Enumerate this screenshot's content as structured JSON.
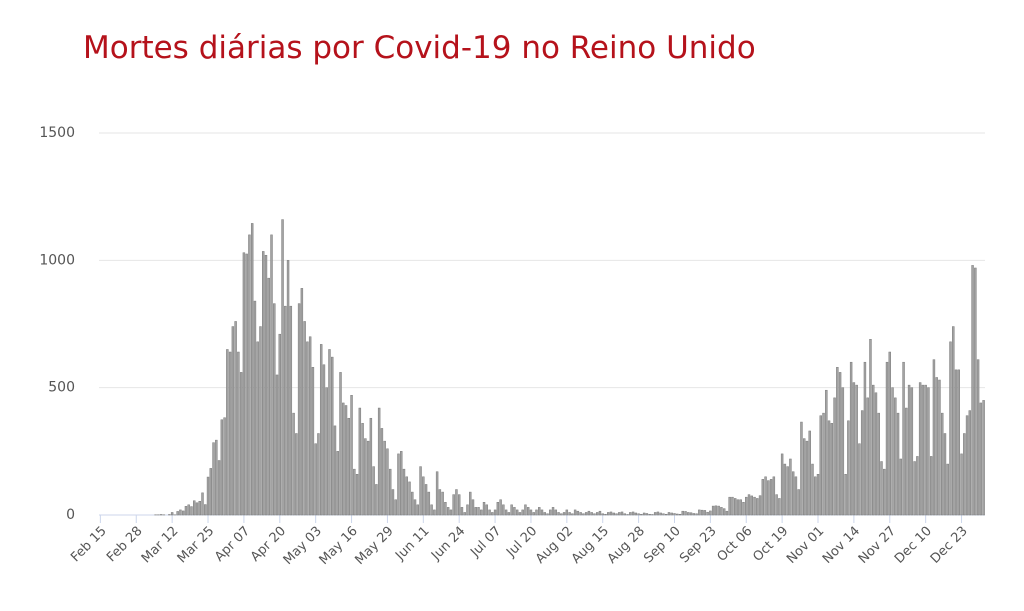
{
  "chart_data": {
    "type": "bar",
    "title": "Mortes diárias por Covid-19 no Reino Unido",
    "color": "#a3a3a3",
    "categories": [
      "Feb 15",
      null,
      null,
      null,
      null,
      null,
      null,
      null,
      null,
      null,
      null,
      null,
      null,
      "Feb 28",
      null,
      null,
      null,
      null,
      null,
      null,
      null,
      null,
      null,
      null,
      null,
      null,
      "Mar 12",
      null,
      null,
      null,
      null,
      null,
      null,
      null,
      null,
      null,
      null,
      null,
      null,
      "Mar 25",
      null,
      null,
      null,
      null,
      null,
      null,
      null,
      null,
      null,
      null,
      null,
      null,
      "Apr 07",
      null,
      null,
      null,
      null,
      null,
      null,
      null,
      null,
      null,
      null,
      null,
      null,
      "Apr 20",
      null,
      null,
      null,
      null,
      null,
      null,
      null,
      null,
      null,
      null,
      null,
      null,
      "May 03",
      null,
      null,
      null,
      null,
      null,
      null,
      null,
      null,
      null,
      null,
      null,
      null,
      "May 16",
      null,
      null,
      null,
      null,
      null,
      null,
      null,
      null,
      null,
      null,
      null,
      null,
      "May 29",
      null,
      null,
      null,
      null,
      null,
      null,
      null,
      null,
      null,
      null,
      null,
      null,
      "Jun 11",
      null,
      null,
      null,
      null,
      null,
      null,
      null,
      null,
      null,
      null,
      null,
      null,
      "Jun 24",
      null,
      null,
      null,
      null,
      null,
      null,
      null,
      null,
      null,
      null,
      null,
      null,
      "Jul 07",
      null,
      null,
      null,
      null,
      null,
      null,
      null,
      null,
      null,
      null,
      null,
      null,
      "Jul 20",
      null,
      null,
      null,
      null,
      null,
      null,
      null,
      null,
      null,
      null,
      null,
      null,
      "Aug 02",
      null,
      null,
      null,
      null,
      null,
      null,
      null,
      null,
      null,
      null,
      null,
      null,
      "Aug 15",
      null,
      null,
      null,
      null,
      null,
      null,
      null,
      null,
      null,
      null,
      null,
      null,
      "Aug 28",
      null,
      null,
      null,
      null,
      null,
      null,
      null,
      null,
      null,
      null,
      null,
      null,
      "Sep 10",
      null,
      null,
      null,
      null,
      null,
      null,
      null,
      null,
      null,
      null,
      null,
      null,
      "Sep 23",
      null,
      null,
      null,
      null,
      null,
      null,
      null,
      null,
      null,
      null,
      null,
      null,
      "Oct 06",
      null,
      null,
      null,
      null,
      null,
      null,
      null,
      null,
      null,
      null,
      null,
      null,
      "Oct 19",
      null,
      null,
      null,
      null,
      null,
      null,
      null,
      null,
      null,
      null,
      null,
      null,
      "Nov 01",
      null,
      null,
      null,
      null,
      null,
      null,
      null,
      null,
      null,
      null,
      null,
      null,
      "Nov 14",
      null,
      null,
      null,
      null,
      null,
      null,
      null,
      null,
      null,
      null,
      null,
      null,
      "Nov 27",
      null,
      null,
      null,
      null,
      null,
      null,
      null,
      null,
      null,
      null,
      null,
      null,
      "Dec 10",
      null,
      null,
      null,
      null,
      null,
      null,
      null,
      null,
      null,
      null,
      null,
      null,
      "Dec 23",
      null,
      null,
      null,
      null,
      null,
      null,
      null,
      null
    ],
    "values": [
      0,
      0,
      0,
      0,
      0,
      0,
      0,
      0,
      0,
      0,
      0,
      0,
      0,
      0,
      0,
      0,
      0,
      0,
      0,
      0,
      1,
      1,
      2,
      1,
      0,
      2,
      10,
      1,
      14,
      20,
      16,
      34,
      40,
      33,
      56,
      48,
      54,
      87,
      41,
      149,
      183,
      284,
      294,
      214,
      374,
      382,
      650,
      640,
      740,
      760,
      640,
      560,
      1030,
      1025,
      1100,
      1145,
      840,
      680,
      740,
      1035,
      1020,
      930,
      1100,
      830,
      550,
      710,
      1160,
      820,
      1000,
      820,
      400,
      320,
      830,
      890,
      760,
      680,
      700,
      580,
      280,
      320,
      670,
      590,
      500,
      650,
      620,
      350,
      250,
      560,
      440,
      430,
      380,
      470,
      180,
      160,
      420,
      360,
      300,
      290,
      380,
      190,
      120,
      420,
      340,
      290,
      260,
      180,
      100,
      60,
      240,
      250,
      180,
      150,
      130,
      90,
      60,
      40,
      190,
      150,
      120,
      90,
      40,
      20,
      170,
      100,
      90,
      50,
      30,
      20,
      80,
      100,
      80,
      30,
      10,
      40,
      90,
      60,
      30,
      30,
      20,
      50,
      40,
      20,
      10,
      20,
      50,
      60,
      40,
      20,
      10,
      40,
      30,
      20,
      10,
      20,
      40,
      30,
      20,
      10,
      20,
      30,
      20,
      10,
      5,
      20,
      30,
      20,
      10,
      5,
      10,
      20,
      10,
      5,
      20,
      15,
      10,
      5,
      10,
      15,
      10,
      5,
      10,
      15,
      5,
      3,
      10,
      12,
      8,
      5,
      10,
      12,
      5,
      2,
      10,
      12,
      8,
      5,
      3,
      8,
      6,
      3,
      2,
      10,
      12,
      8,
      5,
      3,
      10,
      8,
      6,
      4,
      3,
      15,
      14,
      10,
      9,
      6,
      5,
      20,
      19,
      18,
      11,
      16,
      35,
      36,
      35,
      30,
      25,
      15,
      70,
      70,
      65,
      60,
      60,
      50,
      70,
      80,
      75,
      70,
      65,
      76,
      140,
      150,
      135,
      140,
      150,
      80,
      65,
      240,
      200,
      190,
      220,
      170,
      150,
      100,
      365,
      300,
      290,
      330,
      200,
      150,
      160,
      390,
      400,
      490,
      370,
      360,
      460,
      580,
      560,
      500,
      160,
      370,
      600,
      520,
      510,
      280,
      410,
      600,
      460,
      690,
      510,
      480,
      400,
      210,
      180,
      600,
      640,
      500,
      460,
      400,
      220,
      600,
      420,
      510,
      500,
      210,
      230,
      520,
      510,
      510,
      500,
      230,
      610,
      540,
      530,
      400,
      320,
      200,
      680,
      740,
      570,
      570,
      240,
      320,
      390,
      410,
      980,
      970,
      610,
      440,
      450
    ],
    "ylim": [
      0,
      1500
    ],
    "yticks": [
      0,
      500,
      1000,
      1500
    ],
    "grid": true
  }
}
